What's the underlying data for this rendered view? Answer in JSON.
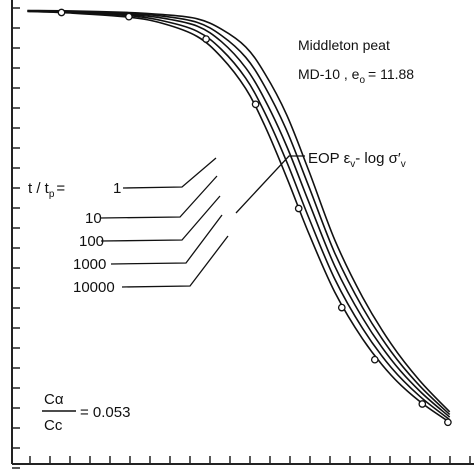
{
  "chart_data": {
    "type": "line",
    "x_scale": "log",
    "grid": false,
    "series": [
      {
        "name": "1",
        "points": [
          [
            0.06,
            0.2
          ],
          [
            0.1,
            0.5
          ],
          [
            0.2,
            1.3
          ],
          [
            0.3,
            2.5
          ],
          [
            0.45,
            5
          ],
          [
            0.6,
            9
          ],
          [
            0.8,
            15
          ],
          [
            1.0,
            22
          ],
          [
            1.3,
            32
          ],
          [
            1.7,
            43
          ],
          [
            2.3,
            54
          ],
          [
            3.2,
            63
          ],
          [
            4.5,
            70
          ],
          [
            6.3,
            75
          ],
          [
            9,
            79
          ]
        ]
      },
      {
        "name": "10",
        "points": [
          [
            0.06,
            0.15
          ],
          [
            0.1,
            0.4
          ],
          [
            0.2,
            1.0
          ],
          [
            0.3,
            2.0
          ],
          [
            0.45,
            4
          ],
          [
            0.6,
            7.5
          ],
          [
            0.8,
            13
          ],
          [
            1.0,
            19.5
          ],
          [
            1.3,
            29
          ],
          [
            1.7,
            40
          ],
          [
            2.3,
            51.5
          ],
          [
            3.2,
            61
          ],
          [
            4.5,
            68.5
          ],
          [
            6.3,
            74
          ],
          [
            9,
            78.5
          ]
        ]
      },
      {
        "name": "100",
        "points": [
          [
            0.06,
            0.1
          ],
          [
            0.1,
            0.3
          ],
          [
            0.2,
            0.8
          ],
          [
            0.3,
            1.5
          ],
          [
            0.45,
            3
          ],
          [
            0.6,
            6
          ],
          [
            0.8,
            11
          ],
          [
            1.0,
            17
          ],
          [
            1.3,
            26
          ],
          [
            1.7,
            37
          ],
          [
            2.3,
            49
          ],
          [
            3.2,
            59
          ],
          [
            4.5,
            67
          ],
          [
            6.3,
            73
          ],
          [
            9,
            78
          ]
        ]
      },
      {
        "name": "1000",
        "points": [
          [
            0.06,
            0.05
          ],
          [
            0.1,
            0.2
          ],
          [
            0.2,
            0.6
          ],
          [
            0.3,
            1.1
          ],
          [
            0.45,
            2.3
          ],
          [
            0.6,
            4.8
          ],
          [
            0.8,
            9
          ],
          [
            1.0,
            14.5
          ],
          [
            1.3,
            23
          ],
          [
            1.7,
            34
          ],
          [
            2.3,
            46.5
          ],
          [
            3.2,
            57
          ],
          [
            4.5,
            65.5
          ],
          [
            6.3,
            72
          ],
          [
            9,
            77.5
          ]
        ]
      },
      {
        "name": "10000",
        "points": [
          [
            0.06,
            0.02
          ],
          [
            0.1,
            0.1
          ],
          [
            0.2,
            0.4
          ],
          [
            0.3,
            0.8
          ],
          [
            0.45,
            1.6
          ],
          [
            0.6,
            3.6
          ],
          [
            0.8,
            7
          ],
          [
            1.0,
            12
          ],
          [
            1.3,
            20
          ],
          [
            1.7,
            31
          ],
          [
            2.3,
            44
          ],
          [
            3.2,
            55
          ],
          [
            4.5,
            64
          ],
          [
            6.3,
            71
          ],
          [
            9,
            77
          ]
        ]
      },
      {
        "name": "EOP",
        "marker": "circle",
        "points": [
          [
            0.09,
            0.4
          ],
          [
            0.2,
            1.2
          ],
          [
            0.5,
            5.5
          ],
          [
            0.9,
            18
          ],
          [
            1.5,
            38
          ],
          [
            2.5,
            57
          ],
          [
            3.7,
            67
          ],
          [
            6.5,
            75.5
          ],
          [
            8.8,
            79
          ]
        ]
      }
    ],
    "annotations": {
      "title_1": "Middleton peat",
      "title_2": "MD-10 , e",
      "title_2_sub": "o",
      "title_2_tail": "= 11.88",
      "eop_label": "EOP ε",
      "eop_label_sub": "v",
      "eop_label_mid": "- log σ′",
      "eop_label_sub2": "v",
      "t_prefix": "t / t",
      "t_prefix_sub": "p",
      "t_eq": "=",
      "t_values": [
        "1",
        "10",
        "100",
        "1000",
        "10000"
      ],
      "ratio_numerator": "Cα",
      "ratio_denominator": "Cc",
      "ratio_value": "= 0.053"
    }
  }
}
